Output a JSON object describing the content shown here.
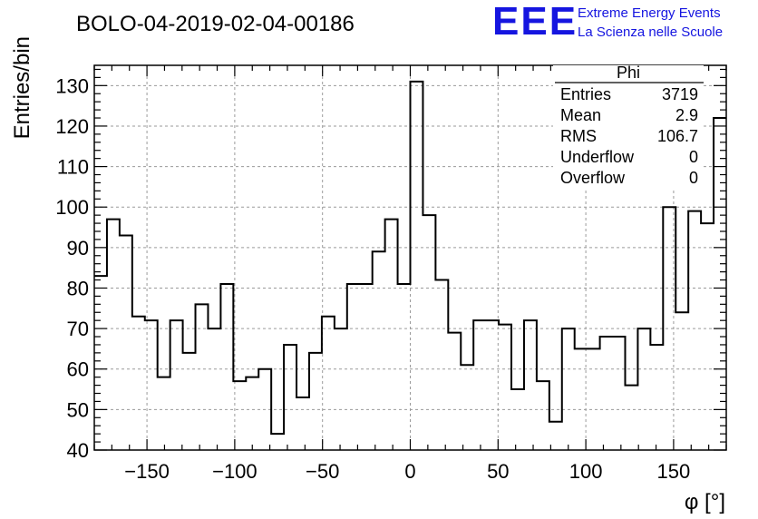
{
  "header": {
    "run_title": "BOLO-04-2019-02-04-00186",
    "logo_mark": "EEE",
    "logo_line1": "Extreme Energy Events",
    "logo_line2": "La Scienza nelle Scuole"
  },
  "stats": {
    "name": "Phi",
    "rows": [
      {
        "label": "Entries",
        "value": "3719"
      },
      {
        "label": "Mean",
        "value": "2.9"
      },
      {
        "label": "RMS",
        "value": "106.7"
      },
      {
        "label": "Underflow",
        "value": "0"
      },
      {
        "label": "Overflow",
        "value": "0"
      }
    ]
  },
  "colors": {
    "logo": "#1515e0",
    "line": "#000000",
    "grid": "#9a9a9a"
  },
  "chart_data": {
    "type": "bar",
    "style": "step-histogram",
    "title": "BOLO-04-2019-02-04-00186",
    "xlabel": "φ [°]",
    "ylabel": "Entries/bin",
    "xlim": [
      -180,
      180
    ],
    "ylim": [
      40,
      135
    ],
    "bin_width": 7.2,
    "bin_edges_start": -180,
    "values": [
      83,
      97,
      93,
      73,
      72,
      58,
      72,
      64,
      76,
      70,
      81,
      57,
      58,
      60,
      44,
      66,
      53,
      64,
      73,
      70,
      81,
      81,
      89,
      97,
      81,
      131,
      98,
      82,
      69,
      61,
      72,
      72,
      71,
      55,
      72,
      57,
      47,
      70,
      65,
      65,
      68,
      68,
      56,
      70,
      66,
      100,
      74,
      99,
      96,
      122
    ],
    "x_ticks": [
      -150,
      -100,
      -50,
      0,
      50,
      100,
      150
    ],
    "x_tick_labels": [
      "−150",
      "−100",
      "−50",
      "0",
      "50",
      "100",
      "150"
    ],
    "y_ticks": [
      40,
      50,
      60,
      70,
      80,
      90,
      100,
      110,
      120,
      130
    ],
    "y_tick_labels": [
      "40",
      "50",
      "60",
      "70",
      "80",
      "90",
      "100",
      "110",
      "120",
      "130"
    ],
    "grid": true,
    "legend": "top-right stats box"
  }
}
